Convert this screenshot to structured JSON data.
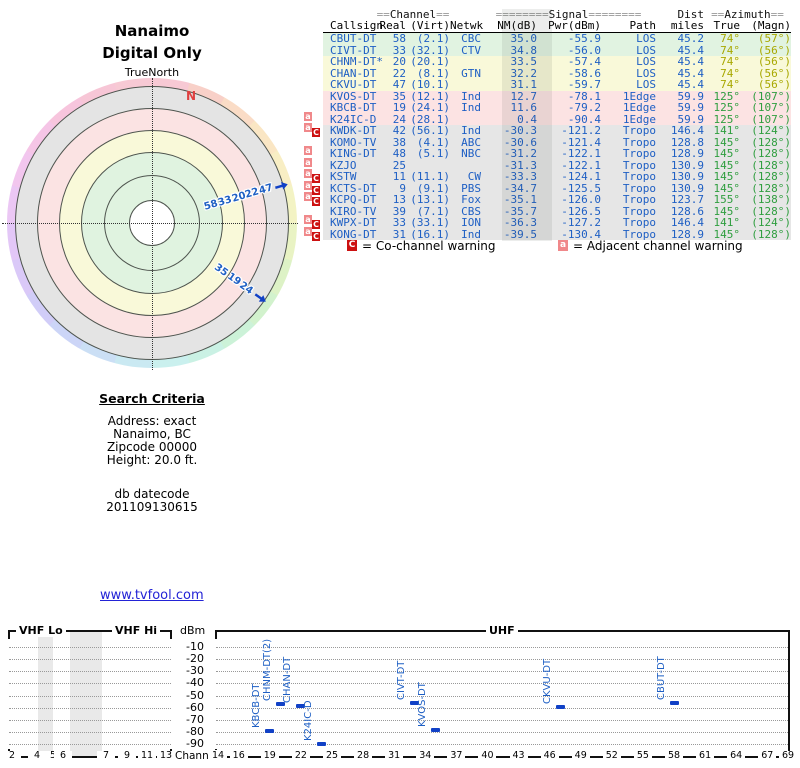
{
  "radar": {
    "title_line1": "Nanaimo",
    "title_line2": "Digital Only",
    "north_label": "TrueNorth",
    "compass_n": "N"
  },
  "search_criteria": {
    "heading": "Search Criteria",
    "lines": [
      "Address: exact",
      "Nanaimo, BC",
      "Zipcode 00000",
      "Height: 20.0 ft."
    ],
    "db_label": "db datecode",
    "db_code": "201109130615"
  },
  "footer_link": "www.tvfool.com",
  "table": {
    "group_headers": {
      "eq2": "==",
      "eq8": "========",
      "channel": "Channel",
      "signal": "Signal",
      "dist": "Dist",
      "azimuth": "Azimuth"
    },
    "col_headers": {
      "callsign": "Callsign",
      "real": "Real",
      "virt": "(Virt)",
      "netwk": "Netwk",
      "nm": "NM(dB)",
      "pwr": "Pwr(dBm)",
      "path": "Path",
      "miles": "miles",
      "true": "True",
      "magn": "(Magn)"
    },
    "rows": [
      {
        "warn": "",
        "callsign": "CBUT-DT",
        "real": "58",
        "virt": "(2.1)",
        "netwk": "CBC",
        "nm": "35.0",
        "pwr": "-55.9",
        "path": "LOS",
        "miles": "45.2",
        "az_true": "74°",
        "az_magn": "(57°)",
        "band": "green"
      },
      {
        "warn": "",
        "callsign": "CIVT-DT",
        "real": "33",
        "virt": "(32.1)",
        "netwk": "CTV",
        "nm": "34.8",
        "pwr": "-56.0",
        "path": "LOS",
        "miles": "45.4",
        "az_true": "74°",
        "az_magn": "(56°)",
        "band": "green"
      },
      {
        "warn": "",
        "callsign": "CHNM-DT*",
        "real": "20",
        "virt": "(20.1)",
        "netwk": "",
        "nm": "33.5",
        "pwr": "-57.4",
        "path": "LOS",
        "miles": "45.4",
        "az_true": "74°",
        "az_magn": "(56°)",
        "band": "yellow"
      },
      {
        "warn": "",
        "callsign": "CHAN-DT",
        "real": "22",
        "virt": "(8.1)",
        "netwk": "GTN",
        "nm": "32.2",
        "pwr": "-58.6",
        "path": "LOS",
        "miles": "45.4",
        "az_true": "74°",
        "az_magn": "(56°)",
        "band": "yellow"
      },
      {
        "warn": "",
        "callsign": "CKVU-DT",
        "real": "47",
        "virt": "(10.1)",
        "netwk": "",
        "nm": "31.1",
        "pwr": "-59.7",
        "path": "LOS",
        "miles": "45.4",
        "az_true": "74°",
        "az_magn": "(56°)",
        "band": "yellow"
      },
      {
        "warn": "",
        "callsign": "KVOS-DT",
        "real": "35",
        "virt": "(12.1)",
        "netwk": "Ind",
        "nm": "12.7",
        "pwr": "-78.1",
        "path": "1Edge",
        "miles": "59.9",
        "az_true": "125°",
        "az_magn": "(107°)",
        "band": "pink"
      },
      {
        "warn": "",
        "callsign": "KBCB-DT",
        "real": "19",
        "virt": "(24.1)",
        "netwk": "Ind",
        "nm": "11.6",
        "pwr": "-79.2",
        "path": "1Edge",
        "miles": "59.9",
        "az_true": "125°",
        "az_magn": "(107°)",
        "band": "pink"
      },
      {
        "warn": "a",
        "callsign": "K24IC-D",
        "real": "24",
        "virt": "(28.1)",
        "netwk": "",
        "nm": "0.4",
        "pwr": "-90.4",
        "path": "1Edge",
        "miles": "59.9",
        "az_true": "125°",
        "az_magn": "(107°)",
        "band": "pink"
      },
      {
        "warn": "aC",
        "callsign": "KWDK-DT",
        "real": "42",
        "virt": "(56.1)",
        "netwk": "Ind",
        "nm": "-30.3",
        "pwr": "-121.2",
        "path": "Tropo",
        "miles": "146.4",
        "az_true": "141°",
        "az_magn": "(124°)",
        "band": "gray"
      },
      {
        "warn": "",
        "callsign": "KOMO-TV",
        "real": "38",
        "virt": "(4.1)",
        "netwk": "ABC",
        "nm": "-30.6",
        "pwr": "-121.4",
        "path": "Tropo",
        "miles": "128.8",
        "az_true": "145°",
        "az_magn": "(128°)",
        "band": "gray"
      },
      {
        "warn": "a",
        "callsign": "KING-DT",
        "real": "48",
        "virt": "(5.1)",
        "netwk": "NBC",
        "nm": "-31.2",
        "pwr": "-122.1",
        "path": "Tropo",
        "miles": "128.9",
        "az_true": "145°",
        "az_magn": "(128°)",
        "band": "gray"
      },
      {
        "warn": "a",
        "callsign": "KZJO",
        "real": "25",
        "virt": "",
        "netwk": "",
        "nm": "-31.3",
        "pwr": "-122.1",
        "path": "Tropo",
        "miles": "130.9",
        "az_true": "145°",
        "az_magn": "(128°)",
        "band": "gray"
      },
      {
        "warn": "aC",
        "callsign": "KSTW",
        "real": "11",
        "virt": "(11.1)",
        "netwk": "CW",
        "nm": "-33.3",
        "pwr": "-124.1",
        "path": "Tropo",
        "miles": "130.9",
        "az_true": "145°",
        "az_magn": "(128°)",
        "band": "gray"
      },
      {
        "warn": "aC",
        "callsign": "KCTS-DT",
        "real": "9",
        "virt": "(9.1)",
        "netwk": "PBS",
        "nm": "-34.7",
        "pwr": "-125.5",
        "path": "Tropo",
        "miles": "130.9",
        "az_true": "145°",
        "az_magn": "(128°)",
        "band": "gray"
      },
      {
        "warn": "aC",
        "callsign": "KCPQ-DT",
        "real": "13",
        "virt": "(13.1)",
        "netwk": "Fox",
        "nm": "-35.1",
        "pwr": "-126.0",
        "path": "Tropo",
        "miles": "123.7",
        "az_true": "155°",
        "az_magn": "(138°)",
        "band": "gray"
      },
      {
        "warn": "",
        "callsign": "KIRO-TV",
        "real": "39",
        "virt": "(7.1)",
        "netwk": "CBS",
        "nm": "-35.7",
        "pwr": "-126.5",
        "path": "Tropo",
        "miles": "128.6",
        "az_true": "145°",
        "az_magn": "(128°)",
        "band": "gray"
      },
      {
        "warn": "aC",
        "callsign": "KWPX-DT",
        "real": "33",
        "virt": "(33.1)",
        "netwk": "ION",
        "nm": "-36.3",
        "pwr": "-127.2",
        "path": "Tropo",
        "miles": "146.4",
        "az_true": "141°",
        "az_magn": "(124°)",
        "band": "gray"
      },
      {
        "warn": "aC",
        "callsign": "KONG-DT",
        "real": "31",
        "virt": "(16.1)",
        "netwk": "Ind",
        "nm": "-39.5",
        "pwr": "-130.4",
        "path": "Tropo",
        "miles": "128.9",
        "az_true": "145°",
        "az_magn": "(128°)",
        "band": "gray"
      }
    ]
  },
  "legend": {
    "co_badge": "C",
    "co_text": "= Co-channel warning",
    "adj_badge": "a",
    "adj_text": "= Adjacent channel warning"
  },
  "spectrum_labels": {
    "vhf_lo": "VHF Lo",
    "vhf_hi": "VHF Hi",
    "uhf": "UHF",
    "dbm": "dBm",
    "channel": "Channel"
  },
  "colors": {
    "data_blue": "#1e5fc4",
    "azimuth_los": "#a8a800",
    "azimuth_far": "#2f9e3f",
    "co_badge_bg": "#cc1111",
    "adj_badge_bg": "#f0888a",
    "marker_blue": "#1141c6",
    "row_green": "#e1f3e1",
    "row_yellow": "#f9f9d9",
    "row_pink": "#fce3e3",
    "row_gray": "#e6e6e6"
  },
  "chart_data": [
    {
      "type": "polar",
      "title": "Nanaimo Digital Only",
      "north_ref": "TrueNorth",
      "ring_zones": [
        "green",
        "green",
        "yellow",
        "pink",
        "gray"
      ],
      "rays": [
        {
          "azimuth_true_deg": 74,
          "channels": [
            "58",
            "33",
            "20",
            "22",
            "47"
          ]
        },
        {
          "azimuth_true_deg": 125,
          "channels": [
            "35",
            "19",
            "24"
          ]
        }
      ]
    },
    {
      "type": "scatter",
      "xlabel": "Channel",
      "ylabel": "dBm",
      "ylim": [
        -95,
        -5
      ],
      "yticks": [
        -10,
        -20,
        -30,
        -40,
        -50,
        -60,
        -70,
        -80,
        -90
      ],
      "band_labels": [
        "VHF Lo",
        "VHF Hi",
        "UHF"
      ],
      "vhf_ticks": [
        2,
        4,
        5,
        6,
        7,
        9,
        11,
        13
      ],
      "uhf_ticks": [
        14,
        16,
        19,
        22,
        25,
        28,
        31,
        34,
        37,
        40,
        43,
        46,
        49,
        52,
        55,
        58,
        61,
        64,
        67,
        69
      ],
      "grid": true,
      "points": [
        {
          "label": "KBCB-DT",
          "channel": 19,
          "dbm": -79.2
        },
        {
          "label": "CHNM-DT(2)",
          "channel": 20,
          "dbm": -57.4
        },
        {
          "label": "CHAN-DT",
          "channel": 22,
          "dbm": -58.6
        },
        {
          "label": "K24IC-D",
          "channel": 24,
          "dbm": -90.4
        },
        {
          "label": "CIVT-DT",
          "channel": 33,
          "dbm": -56.0
        },
        {
          "label": "KVOS-DT",
          "channel": 35,
          "dbm": -78.1
        },
        {
          "label": "CKVU-DT",
          "channel": 47,
          "dbm": -59.7
        },
        {
          "label": "CBUT-DT",
          "channel": 58,
          "dbm": -55.9
        }
      ]
    }
  ]
}
